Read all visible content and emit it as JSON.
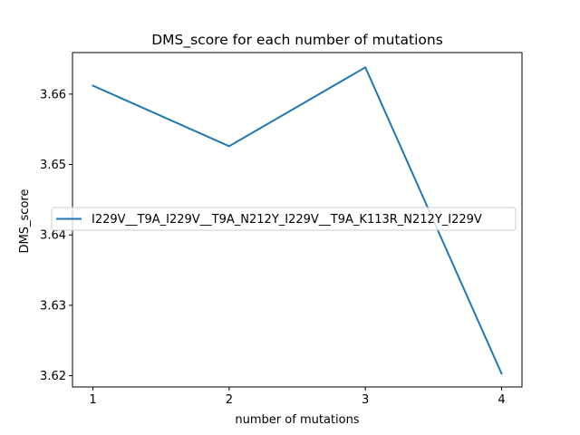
{
  "chart_data": {
    "type": "line",
    "title": "DMS_score for each number of mutations",
    "xlabel": "number of mutations",
    "ylabel": "DMS_score",
    "x": [
      1,
      2,
      3,
      4
    ],
    "xticks": [
      "1",
      "2",
      "3",
      "4"
    ],
    "xlim": [
      0.85,
      4.15
    ],
    "yticks": [
      "3.62",
      "3.63",
      "3.64",
      "3.65",
      "3.66"
    ],
    "ytick_values": [
      3.62,
      3.63,
      3.64,
      3.65,
      3.66
    ],
    "ylim": [
      3.6184,
      3.6659
    ],
    "series": [
      {
        "name": "I229V__T9A_I229V__T9A_N212Y_I229V__T9A_K113R_N212Y_I229V",
        "values": [
          3.6612,
          3.6526,
          3.6638,
          3.6203
        ],
        "color": "#1f77b4"
      }
    ],
    "grid": false,
    "legend_position": "center-left"
  }
}
